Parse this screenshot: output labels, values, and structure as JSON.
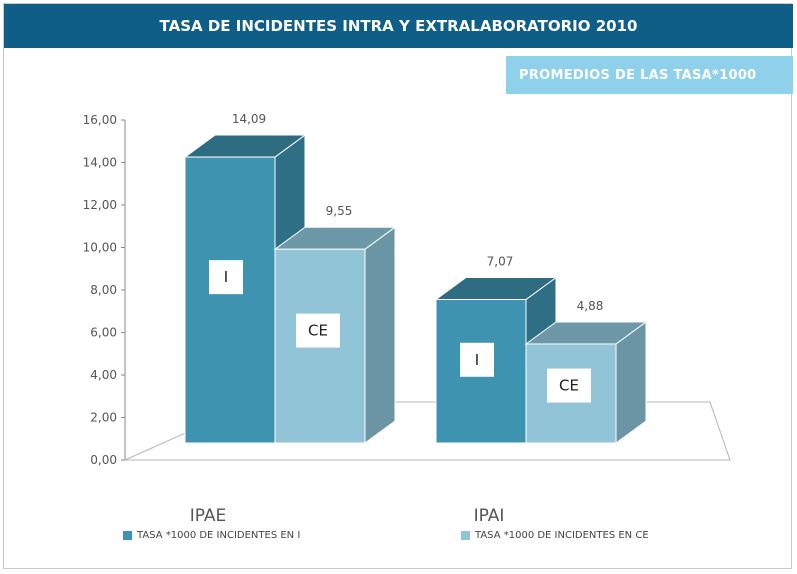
{
  "header": {
    "title": "TASA DE INCIDENTES INTRA Y EXTRALABORATORIO 2010",
    "subtitle": "PROMEDIOS DE LAS TASA*1000"
  },
  "chart_data": {
    "type": "bar",
    "title": "TASA DE INCIDENTES INTRA Y EXTRALABORATORIO 2010",
    "subtitle": "PROMEDIOS DE LAS TASA*1000",
    "categories": [
      "IPAE",
      "IPAI"
    ],
    "series": [
      {
        "name": "TASA *1000 DE INCIDENTES EN I",
        "bar_tag": "I",
        "values": [
          14.09,
          7.07
        ],
        "value_labels": [
          "14,09",
          "7,07"
        ],
        "color": "#3e93b0"
      },
      {
        "name": "TASA *1000 DE INCIDENTES EN CE",
        "bar_tag": "CE",
        "values": [
          9.55,
          4.88
        ],
        "value_labels": [
          "9,55",
          "4,88"
        ],
        "color": "#92c4d8"
      }
    ],
    "yticks": [
      "0,00",
      "2,00",
      "4,00",
      "6,00",
      "8,00",
      "10,00",
      "12,00",
      "14,00",
      "16,00"
    ],
    "ylim": [
      0,
      16
    ],
    "grid": false,
    "legend_position": "bottom",
    "style": "3d-bars"
  }
}
